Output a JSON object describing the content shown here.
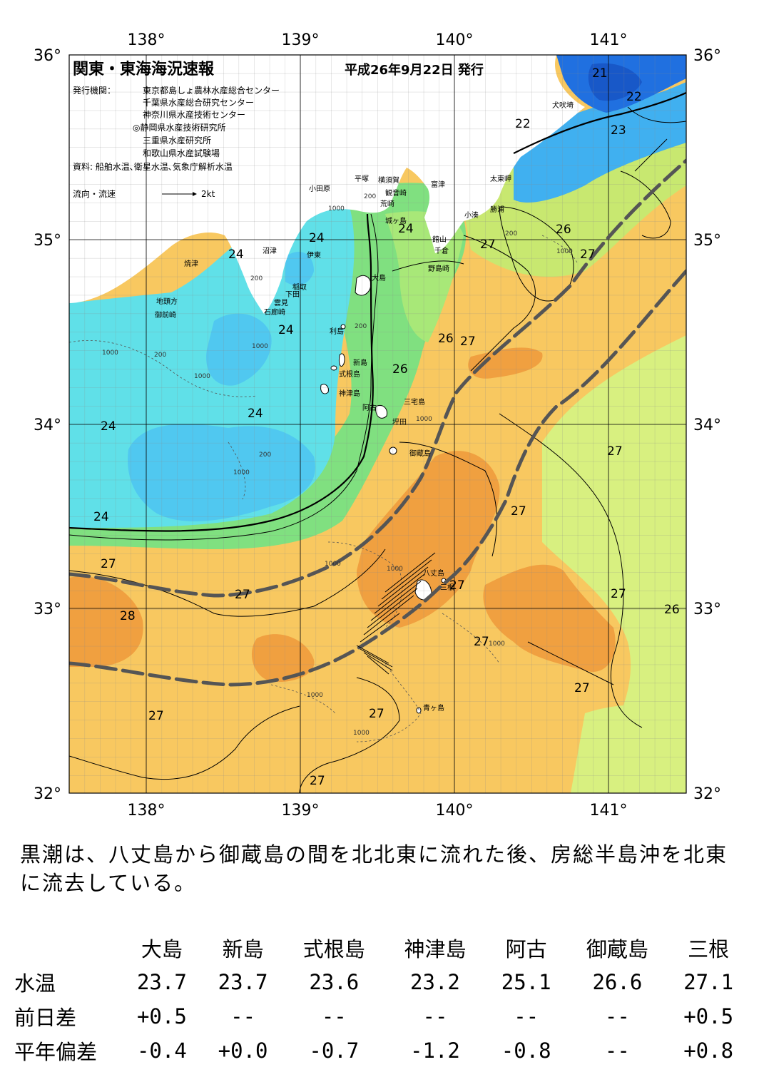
{
  "map": {
    "title": "関東・東海海況速報",
    "date": "平成26年9月22日 発行",
    "publisher_label": "発行機関：",
    "publishers": [
      "東京都島しょ農林水産総合センター",
      "千葉県水産総合研究センター",
      "神奈川県水産技術センター",
      "◎静岡県水産技術研究所",
      "三重県水産研究所",
      "和歌山県水産試験場"
    ],
    "source": "資料: 船舶水温､衛星水温､気象庁解析水温",
    "legend_label": "流向・流速",
    "legend_speed": "2kt",
    "lon_labels": [
      "138°",
      "139°",
      "140°",
      "141°"
    ],
    "lat_labels": [
      "36°",
      "35°",
      "34°",
      "33°",
      "32°"
    ],
    "places": [
      {
        "name": "小田原"
      },
      {
        "name": "平塚"
      },
      {
        "name": "横須賀"
      },
      {
        "name": "観音崎"
      },
      {
        "name": "富津"
      },
      {
        "name": "荒崎"
      },
      {
        "name": "城ヶ島"
      },
      {
        "name": "館山"
      },
      {
        "name": "千倉"
      },
      {
        "name": "野島崎"
      },
      {
        "name": "小湊"
      },
      {
        "name": "勝浦"
      },
      {
        "name": "太東岬"
      },
      {
        "name": "犬吠埼"
      },
      {
        "name": "沼津"
      },
      {
        "name": "伊東"
      },
      {
        "name": "焼津"
      },
      {
        "name": "稲取"
      },
      {
        "name": "下田"
      },
      {
        "name": "雲見"
      },
      {
        "name": "石廊崎"
      },
      {
        "name": "地頭方"
      },
      {
        "name": "御前崎"
      },
      {
        "name": "大島"
      },
      {
        "name": "利島"
      },
      {
        "name": "新島"
      },
      {
        "name": "式根島"
      },
      {
        "name": "神津島"
      },
      {
        "name": "三宅島"
      },
      {
        "name": "阿古"
      },
      {
        "name": "坪田"
      },
      {
        "name": "御蔵島"
      },
      {
        "name": "八丈島"
      },
      {
        "name": "三根"
      },
      {
        "name": "青ヶ島"
      }
    ],
    "isotherm_labels": [
      "21",
      "22",
      "22",
      "23",
      "24",
      "24",
      "24",
      "24",
      "24",
      "24",
      "26",
      "26",
      "26",
      "26",
      "27",
      "27",
      "27",
      "27",
      "27",
      "27",
      "27",
      "27",
      "27",
      "27",
      "27",
      "27",
      "28"
    ],
    "depth_labels": [
      "200",
      "1000"
    ]
  },
  "summary": "黒潮は、八丈島から御蔵島の間を北北東に流れた後、房総半島沖を北東に流去している。",
  "table": {
    "stations": [
      "大島",
      "新島",
      "式根島",
      "神津島",
      "阿古",
      "御蔵島",
      "三根"
    ],
    "rows": [
      {
        "label": "水温",
        "values": [
          "23.7",
          "23.7",
          "23.6",
          "23.2",
          "25.1",
          "26.6",
          "27.1"
        ]
      },
      {
        "label": "前日差",
        "values": [
          "+0.5",
          "--",
          "--",
          "--",
          "--",
          "--",
          "+0.5"
        ]
      },
      {
        "label": "平年偏差",
        "values": [
          "-0.4",
          "+0.0",
          "-0.7",
          "-1.2",
          "-0.8",
          "--",
          "+0.8"
        ]
      }
    ]
  },
  "colors": {
    "warm_deep": "#f0a040",
    "warm": "#f8c860",
    "mid": "#c8e870",
    "cool_green": "#80e080",
    "cool": "#60e0e8",
    "cold": "#40b0f0",
    "colder": "#2070e0",
    "land": "#ffffff",
    "kuroshio_axis": "#555555"
  }
}
